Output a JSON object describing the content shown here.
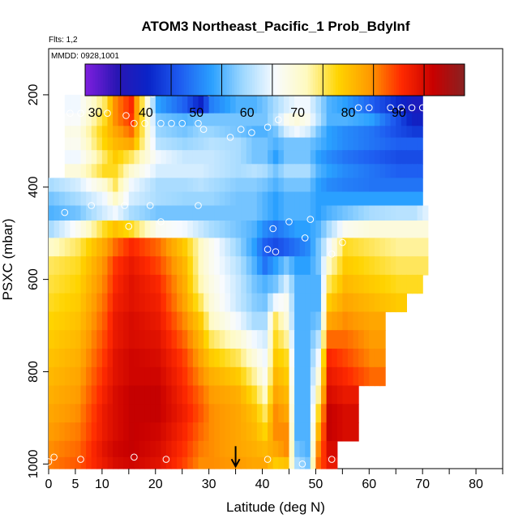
{
  "chart_data": {
    "type": "heatmap",
    "title": "ATOM3 Northeast_Pacific_1 Prob_BdyInf",
    "flts_label": "Flts: 1,2",
    "mmdd_label": "MMDD: 0928,1001",
    "xlabel": "Latitude (deg N)",
    "ylabel": "PSXC (mbar)",
    "xlim": [
      0,
      85
    ],
    "ylim": [
      1010,
      100
    ],
    "x_tick_labels": [
      "0",
      "5",
      "10",
      "20",
      "30",
      "40",
      "50",
      "60",
      "70",
      "80"
    ],
    "x_tick_values": [
      0,
      5,
      10,
      20,
      30,
      40,
      50,
      60,
      70,
      80
    ],
    "x_minor_ticks": [
      15,
      25,
      35,
      45,
      55,
      65,
      75,
      85
    ],
    "y_tick_labels": [
      "200",
      "400",
      "600",
      "800",
      "1000"
    ],
    "y_tick_values": [
      200,
      400,
      600,
      800,
      1000
    ],
    "colorbar": {
      "min": 23,
      "max": 98,
      "tick_labels": [
        "30",
        "40",
        "50",
        "60",
        "70",
        "80",
        "90"
      ],
      "tick_values": [
        30,
        40,
        50,
        60,
        70,
        80,
        90
      ],
      "colors": [
        "#7f1fdf",
        "#2a16b4",
        "#0a24c8",
        "#1e5cf0",
        "#2aa0ff",
        "#9fd8ff",
        "#f8fbff",
        "#fffac0",
        "#ffd400",
        "#ff9a00",
        "#ff2a00",
        "#c80000",
        "#882222"
      ]
    },
    "pressure_levels": [
      175,
      225,
      255,
      280,
      305,
      335,
      365,
      395,
      425,
      455,
      490,
      530,
      570,
      610,
      650,
      690,
      730,
      770,
      810,
      850,
      890,
      930,
      970,
      1000
    ],
    "profile_samples": [
      {
        "lat": 0,
        "values": [
          null,
          null,
          null,
          null,
          null,
          null,
          null,
          55,
          52,
          50,
          55,
          66,
          70,
          71,
          72,
          73,
          74,
          75,
          76,
          77,
          78,
          79,
          80,
          81
        ]
      },
      {
        "lat": 5,
        "values": [
          null,
          60,
          61,
          63,
          62,
          60,
          64,
          58,
          55,
          52,
          62,
          70,
          72,
          73,
          74,
          75,
          76,
          77,
          78,
          79,
          80,
          81,
          82,
          83
        ]
      },
      {
        "lat": 10,
        "values": [
          null,
          70,
          72,
          74,
          73,
          70,
          72,
          65,
          60,
          58,
          72,
          78,
          80,
          81,
          82,
          83,
          84,
          85,
          86,
          87,
          88,
          88,
          89,
          88
        ]
      },
      {
        "lat": 12,
        "values": [
          null,
          80,
          80,
          78,
          76,
          74,
          72,
          70,
          66,
          60,
          75,
          82,
          85,
          86,
          87,
          88,
          88,
          89,
          89,
          90,
          90,
          90,
          91,
          90
        ]
      },
      {
        "lat": 15,
        "values": [
          58,
          86,
          85,
          82,
          78,
          70,
          65,
          60,
          58,
          55,
          72,
          86,
          88,
          89,
          89,
          90,
          90,
          91,
          91,
          92,
          92,
          92,
          92,
          91
        ]
      },
      {
        "lat": 20,
        "values": [
          56,
          48,
          52,
          54,
          56,
          60,
          58,
          55,
          55,
          52,
          62,
          82,
          84,
          86,
          87,
          88,
          89,
          90,
          91,
          92,
          92,
          91,
          90,
          89
        ]
      },
      {
        "lat": 25,
        "values": [
          55,
          42,
          50,
          52,
          54,
          57,
          58,
          55,
          54,
          52,
          60,
          74,
          76,
          77,
          78,
          80,
          82,
          84,
          85,
          86,
          87,
          86,
          85,
          84
        ]
      },
      {
        "lat": 28,
        "values": [
          35,
          35,
          52,
          54,
          55,
          57,
          58,
          56,
          54,
          52,
          57,
          66,
          66,
          67,
          70,
          74,
          76,
          78,
          80,
          82,
          83,
          82,
          81,
          80
        ]
      },
      {
        "lat": 30,
        "values": [
          null,
          45,
          52,
          54,
          56,
          57,
          57,
          55,
          54,
          52,
          55,
          62,
          62,
          63,
          64,
          66,
          70,
          74,
          77,
          79,
          80,
          80,
          80,
          80
        ]
      },
      {
        "lat": 35,
        "values": [
          null,
          50,
          52,
          52,
          55,
          55,
          55,
          53,
          52,
          52,
          52,
          54,
          56,
          57,
          57,
          60,
          65,
          70,
          74,
          77,
          78,
          78,
          78,
          79
        ]
      },
      {
        "lat": 38,
        "values": [
          null,
          50,
          52,
          50,
          52,
          52,
          56,
          53,
          52,
          52,
          50,
          48,
          50,
          52,
          53,
          55,
          60,
          64,
          68,
          72,
          75,
          76,
          77,
          78
        ]
      },
      {
        "lat": 40,
        "values": [
          null,
          52,
          52,
          50,
          52,
          52,
          55,
          52,
          50,
          50,
          46,
          42,
          44,
          50,
          52,
          55,
          58,
          60,
          62,
          66,
          70,
          73,
          76,
          78
        ]
      },
      {
        "lat": 42,
        "values": [
          null,
          55,
          56,
          52,
          50,
          48,
          52,
          50,
          48,
          48,
          44,
          40,
          48,
          52,
          60,
          70,
          72,
          74,
          76,
          78,
          80,
          80,
          78,
          74
        ]
      },
      {
        "lat": 44,
        "values": [
          null,
          58,
          62,
          58,
          52,
          52,
          55,
          52,
          50,
          50,
          46,
          42,
          52,
          58,
          62,
          64,
          68,
          72,
          74,
          76,
          78,
          80,
          80,
          75
        ]
      },
      {
        "lat": 46,
        "values": [
          null,
          60,
          64,
          60,
          52,
          52,
          55,
          52,
          50,
          50,
          48,
          44,
          48,
          50,
          50,
          50,
          50,
          50,
          50,
          50,
          50,
          50,
          52,
          55
        ]
      },
      {
        "lat": 48,
        "values": [
          null,
          60,
          62,
          58,
          52,
          52,
          55,
          52,
          50,
          50,
          48,
          46,
          48,
          50,
          50,
          50,
          50,
          50,
          50,
          50,
          50,
          50,
          50,
          52
        ]
      },
      {
        "lat": 50,
        "values": [
          null,
          55,
          56,
          52,
          50,
          48,
          50,
          48,
          48,
          48,
          50,
          52,
          52,
          50,
          50,
          52,
          56,
          60,
          64,
          68,
          72,
          76,
          80,
          82
        ]
      },
      {
        "lat": 52,
        "values": [
          null,
          50,
          50,
          48,
          48,
          46,
          48,
          46,
          48,
          50,
          55,
          60,
          66,
          70,
          74,
          78,
          82,
          86,
          88,
          90,
          92,
          92,
          90,
          88
        ]
      },
      {
        "lat": 55,
        "values": [
          null,
          48,
          50,
          46,
          46,
          44,
          46,
          45,
          48,
          52,
          62,
          72,
          74,
          76,
          78,
          80,
          82,
          84,
          86,
          88,
          90,
          90,
          null,
          null
        ]
      },
      {
        "lat": 60,
        "values": [
          null,
          42,
          48,
          44,
          44,
          42,
          44,
          44,
          48,
          55,
          64,
          70,
          72,
          74,
          76,
          78,
          79,
          80,
          82,
          null,
          null,
          null,
          null,
          null
        ]
      },
      {
        "lat": 65,
        "values": [
          null,
          36,
          40,
          40,
          42,
          40,
          42,
          44,
          48,
          56,
          64,
          68,
          70,
          72,
          74,
          null,
          null,
          null,
          null,
          null,
          null,
          null,
          null,
          null
        ]
      },
      {
        "lat": 68,
        "values": [
          null,
          32,
          34,
          38,
          42,
          40,
          42,
          44,
          48,
          56,
          64,
          68,
          70,
          72,
          null,
          null,
          null,
          null,
          null,
          null,
          null,
          null,
          null,
          null
        ]
      },
      {
        "lat": 71,
        "values": [
          null,
          null,
          null,
          null,
          null,
          null,
          null,
          null,
          null,
          60,
          64,
          68,
          70,
          null,
          null,
          null,
          null,
          null,
          null,
          null,
          null,
          null,
          null,
          null
        ]
      }
    ],
    "observations": [
      {
        "lat": 26,
        "p": 185
      },
      {
        "lat": 30,
        "p": 196
      },
      {
        "lat": 19.5,
        "p": 198
      },
      {
        "lat": 4,
        "p": 240
      },
      {
        "lat": 6,
        "p": 240
      },
      {
        "lat": 11,
        "p": 240
      },
      {
        "lat": 14.5,
        "p": 245
      },
      {
        "lat": 64,
        "p": 228
      },
      {
        "lat": 66,
        "p": 228
      },
      {
        "lat": 68,
        "p": 228
      },
      {
        "lat": 70,
        "p": 228
      },
      {
        "lat": 58,
        "p": 228
      },
      {
        "lat": 60,
        "p": 228
      },
      {
        "lat": 16,
        "p": 262
      },
      {
        "lat": 18,
        "p": 262
      },
      {
        "lat": 21,
        "p": 262
      },
      {
        "lat": 23,
        "p": 262
      },
      {
        "lat": 25,
        "p": 262
      },
      {
        "lat": 28,
        "p": 262
      },
      {
        "lat": 29,
        "p": 275
      },
      {
        "lat": 36,
        "p": 275
      },
      {
        "lat": 38,
        "p": 282
      },
      {
        "lat": 41,
        "p": 270
      },
      {
        "lat": 43,
        "p": 254
      },
      {
        "lat": 34,
        "p": 292
      },
      {
        "lat": 14.2,
        "p": 440
      },
      {
        "lat": 19,
        "p": 440
      },
      {
        "lat": 28,
        "p": 440
      },
      {
        "lat": 8,
        "p": 440
      },
      {
        "lat": 3,
        "p": 455
      },
      {
        "lat": 15,
        "p": 485
      },
      {
        "lat": 21,
        "p": 475
      },
      {
        "lat": 45,
        "p": 475
      },
      {
        "lat": 42,
        "p": 490
      },
      {
        "lat": 49,
        "p": 470
      },
      {
        "lat": 48,
        "p": 510
      },
      {
        "lat": 41,
        "p": 535
      },
      {
        "lat": 42.5,
        "p": 540
      },
      {
        "lat": 53,
        "p": 545
      },
      {
        "lat": 55,
        "p": 520
      },
      {
        "lat": 1,
        "p": 985
      },
      {
        "lat": 6,
        "p": 990
      },
      {
        "lat": 16,
        "p": 985
      },
      {
        "lat": 22,
        "p": 990
      },
      {
        "lat": 41,
        "p": 990
      },
      {
        "lat": 47.5,
        "p": 1000
      },
      {
        "lat": 53,
        "p": 990
      },
      {
        "lat": 0,
        "p": 995
      }
    ],
    "flight_track_arrow": {
      "lat": 35,
      "p": 1000
    }
  }
}
